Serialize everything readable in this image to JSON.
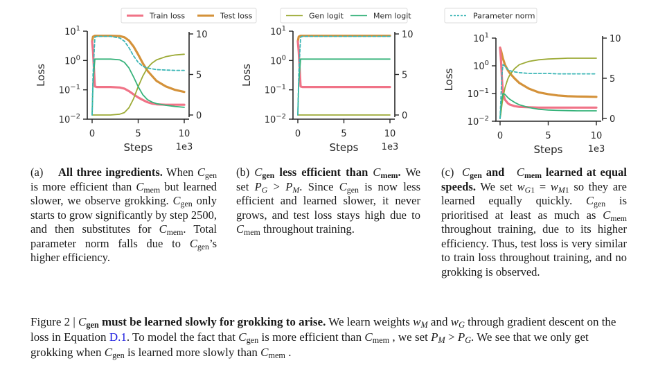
{
  "figure": {
    "number_label": "Figure 2 |",
    "caption_bold": "must be learned slowly for grokking to arise.",
    "caption_parts": {
      "c_gen": "C",
      "gen": "gen",
      "mem": "mem",
      "s1": "We learn weights",
      "wM": "w",
      "M": "M",
      "and": "and",
      "wG": "w",
      "G": "G",
      "s2": "through gradient descent on the loss in Equation",
      "eq_link": "D.1",
      "s3": ". To model the fact that",
      "s4": "is more efficient than",
      "s5": ", we set",
      "PM": "P",
      "gt": " > ",
      "PG": "P",
      "s6": ". We see that we only get grokking when",
      "s7": "is learned more slowly than",
      "s8": "."
    }
  },
  "legends": [
    {
      "items": [
        {
          "label": "Train loss",
          "color": "#f07387",
          "style": "solid"
        },
        {
          "label": "Test loss",
          "color": "#d4923a",
          "style": "solid"
        }
      ]
    },
    {
      "items": [
        {
          "label": "Gen logit",
          "color": "#9caa35",
          "style": "solid"
        },
        {
          "label": "Mem logit",
          "color": "#36b27a",
          "style": "solid"
        }
      ]
    },
    {
      "items": [
        {
          "label": "Parameter norm",
          "color": "#3bb6b6",
          "style": "dashed"
        }
      ]
    }
  ],
  "subcaptions": {
    "a": {
      "label": "(a)",
      "title": "All three ingredients.",
      "t1": "When",
      "t2": "is more efficient than",
      "t3": "but learned slower, we observe grokking.",
      "t4": "only starts to grow significantly by step 2500, and then substitutes for",
      "t5": ". Total parameter norm falls due to",
      "t6": "’s higher efficiency."
    },
    "b": {
      "label": "(b)",
      "title_mid": "less efficient than",
      "t1": "We set",
      "t2": ". Since",
      "t3": "is now less efficient and learned slower, it never grows, and test loss stays high due to",
      "t4": "throughout training."
    },
    "c": {
      "label": "(c)",
      "title_and": "and",
      "title_rest": "learned at equal speeds.",
      "t1": "We set",
      "eq": " = ",
      "t2": "so they are learned equally quickly.",
      "t3": "is prioritised at least as much as",
      "t4": "throughout training, due to its higher efficiency. Thus, test loss is very similar to train loss throughout training, and no grokking is observed."
    }
  },
  "chart_data": [
    {
      "panel": "a",
      "type": "line",
      "title": "",
      "xlabel": "Steps",
      "x_offset_label": "1e3",
      "ylabel": "Loss",
      "yscale": "log",
      "ylim": [
        0.01,
        10
      ],
      "y2lim": [
        0,
        10
      ],
      "xlim": [
        0,
        10
      ],
      "x_ticks": [
        "0",
        "5",
        "10"
      ],
      "y_ticks": [
        "10^1",
        "10^0",
        "10^-1",
        "10^-2"
      ],
      "y2_ticks": [
        "10",
        "5",
        "0"
      ],
      "grid": false,
      "x": [
        0,
        0.1,
        0.3,
        0.5,
        1,
        2,
        3,
        3.5,
        4,
        4.5,
        5,
        5.5,
        6,
        6.5,
        7,
        8,
        9,
        10
      ],
      "series": [
        {
          "name": "Train loss",
          "axis": "left",
          "values": [
            4.5,
            2.0,
            0.13,
            0.125,
            0.125,
            0.125,
            0.12,
            0.11,
            0.09,
            0.07,
            0.055,
            0.045,
            0.038,
            0.034,
            0.032,
            0.031,
            0.031,
            0.031
          ]
        },
        {
          "name": "Test loss",
          "axis": "left",
          "values": [
            4.5,
            6.5,
            7,
            7,
            7,
            7,
            6.8,
            6.2,
            4.8,
            3.0,
            1.6,
            0.8,
            0.45,
            0.3,
            0.2,
            0.13,
            0.1,
            0.085
          ]
        },
        {
          "name": "Gen logit",
          "axis": "right",
          "values": [
            0,
            0,
            0,
            0,
            0,
            0,
            0.1,
            0.3,
            0.9,
            2.0,
            3.5,
            4.8,
            5.8,
            6.4,
            6.8,
            7.2,
            7.4,
            7.5
          ]
        },
        {
          "name": "Mem logit",
          "axis": "right",
          "values": [
            0,
            4,
            6.9,
            6.9,
            6.9,
            6.9,
            6.8,
            6.5,
            5.8,
            4.7,
            3.5,
            2.5,
            1.9,
            1.6,
            1.4,
            1.2,
            1.05,
            0.95
          ]
        },
        {
          "name": "Parameter norm",
          "axis": "right",
          "values": [
            0,
            5,
            9.6,
            9.7,
            9.7,
            9.7,
            9.5,
            9.1,
            8.3,
            7.3,
            6.5,
            6.0,
            5.8,
            5.7,
            5.6,
            5.55,
            5.5,
            5.5
          ]
        }
      ]
    },
    {
      "panel": "b",
      "type": "line",
      "xlabel": "Steps",
      "x_offset_label": "1e3",
      "ylabel": "Loss",
      "yscale": "log",
      "ylim": [
        0.01,
        10
      ],
      "y2lim": [
        0,
        10
      ],
      "xlim": [
        0,
        10
      ],
      "x_ticks": [
        "0",
        "5",
        "10"
      ],
      "y_ticks": [
        "10^1",
        "10^0",
        "10^-1",
        "10^-2"
      ],
      "y2_ticks": [
        "10",
        "5",
        "0"
      ],
      "grid": false,
      "x": [
        0,
        0.1,
        0.3,
        0.5,
        1,
        2,
        4,
        6,
        8,
        10
      ],
      "series": [
        {
          "name": "Train loss",
          "axis": "left",
          "values": [
            4.5,
            2.0,
            0.13,
            0.125,
            0.125,
            0.125,
            0.125,
            0.125,
            0.125,
            0.125
          ]
        },
        {
          "name": "Test loss",
          "axis": "left",
          "values": [
            4.5,
            6.5,
            7,
            7,
            7,
            7,
            7,
            7,
            7,
            7
          ]
        },
        {
          "name": "Gen logit",
          "axis": "right",
          "values": [
            0,
            0,
            0,
            0,
            0,
            0,
            0,
            0,
            0,
            0
          ]
        },
        {
          "name": "Mem logit",
          "axis": "right",
          "values": [
            0,
            4,
            6.9,
            6.9,
            6.9,
            6.9,
            6.9,
            6.9,
            6.9,
            6.9
          ]
        },
        {
          "name": "Parameter norm",
          "axis": "right",
          "values": [
            0,
            5,
            9.6,
            9.7,
            9.7,
            9.7,
            9.7,
            9.7,
            9.7,
            9.7
          ]
        }
      ]
    },
    {
      "panel": "c",
      "type": "line",
      "xlabel": "Steps",
      "x_offset_label": "1e3",
      "ylabel": "Loss",
      "yscale": "log",
      "ylim": [
        0.01,
        10
      ],
      "y2lim": [
        0,
        10
      ],
      "xlim": [
        0,
        10
      ],
      "x_ticks": [
        "0",
        "5",
        "10"
      ],
      "y_ticks": [
        "10^1",
        "10^0",
        "10^-1",
        "10^-2"
      ],
      "y2_ticks": [
        "10",
        "5",
        "0"
      ],
      "grid": false,
      "x": [
        0,
        0.1,
        0.2,
        0.3,
        0.5,
        0.8,
        1,
        1.5,
        2,
        3,
        4,
        5,
        6,
        7,
        8,
        9,
        10
      ],
      "series": [
        {
          "name": "Train loss",
          "axis": "left",
          "values": [
            4.5,
            1.5,
            0.3,
            0.1,
            0.06,
            0.045,
            0.04,
            0.035,
            0.033,
            0.032,
            0.031,
            0.031,
            0.031,
            0.031,
            0.031,
            0.031,
            0.031
          ]
        },
        {
          "name": "Test loss",
          "axis": "left",
          "values": [
            4.5,
            3.5,
            2.5,
            1.8,
            1.1,
            0.7,
            0.55,
            0.35,
            0.24,
            0.15,
            0.11,
            0.095,
            0.085,
            0.08,
            0.078,
            0.077,
            0.076
          ]
        },
        {
          "name": "Gen logit",
          "axis": "right",
          "values": [
            0,
            0.8,
            1.8,
            2.6,
            3.8,
            4.9,
            5.4,
            6.2,
            6.7,
            7.1,
            7.3,
            7.4,
            7.45,
            7.5,
            7.5,
            7.5,
            7.5
          ]
        },
        {
          "name": "Mem logit",
          "axis": "right",
          "values": [
            0,
            1.5,
            2.5,
            3.1,
            3.0,
            2.6,
            2.4,
            2.0,
            1.7,
            1.35,
            1.15,
            1.05,
            1.0,
            0.97,
            0.95,
            0.95,
            0.95
          ]
        },
        {
          "name": "Parameter norm",
          "axis": "right",
          "values": [
            0,
            3,
            5.5,
            6.7,
            6.5,
            6.1,
            5.95,
            5.8,
            5.7,
            5.6,
            5.6,
            5.6,
            5.55,
            5.55,
            5.55,
            5.55,
            5.55
          ]
        }
      ]
    }
  ]
}
